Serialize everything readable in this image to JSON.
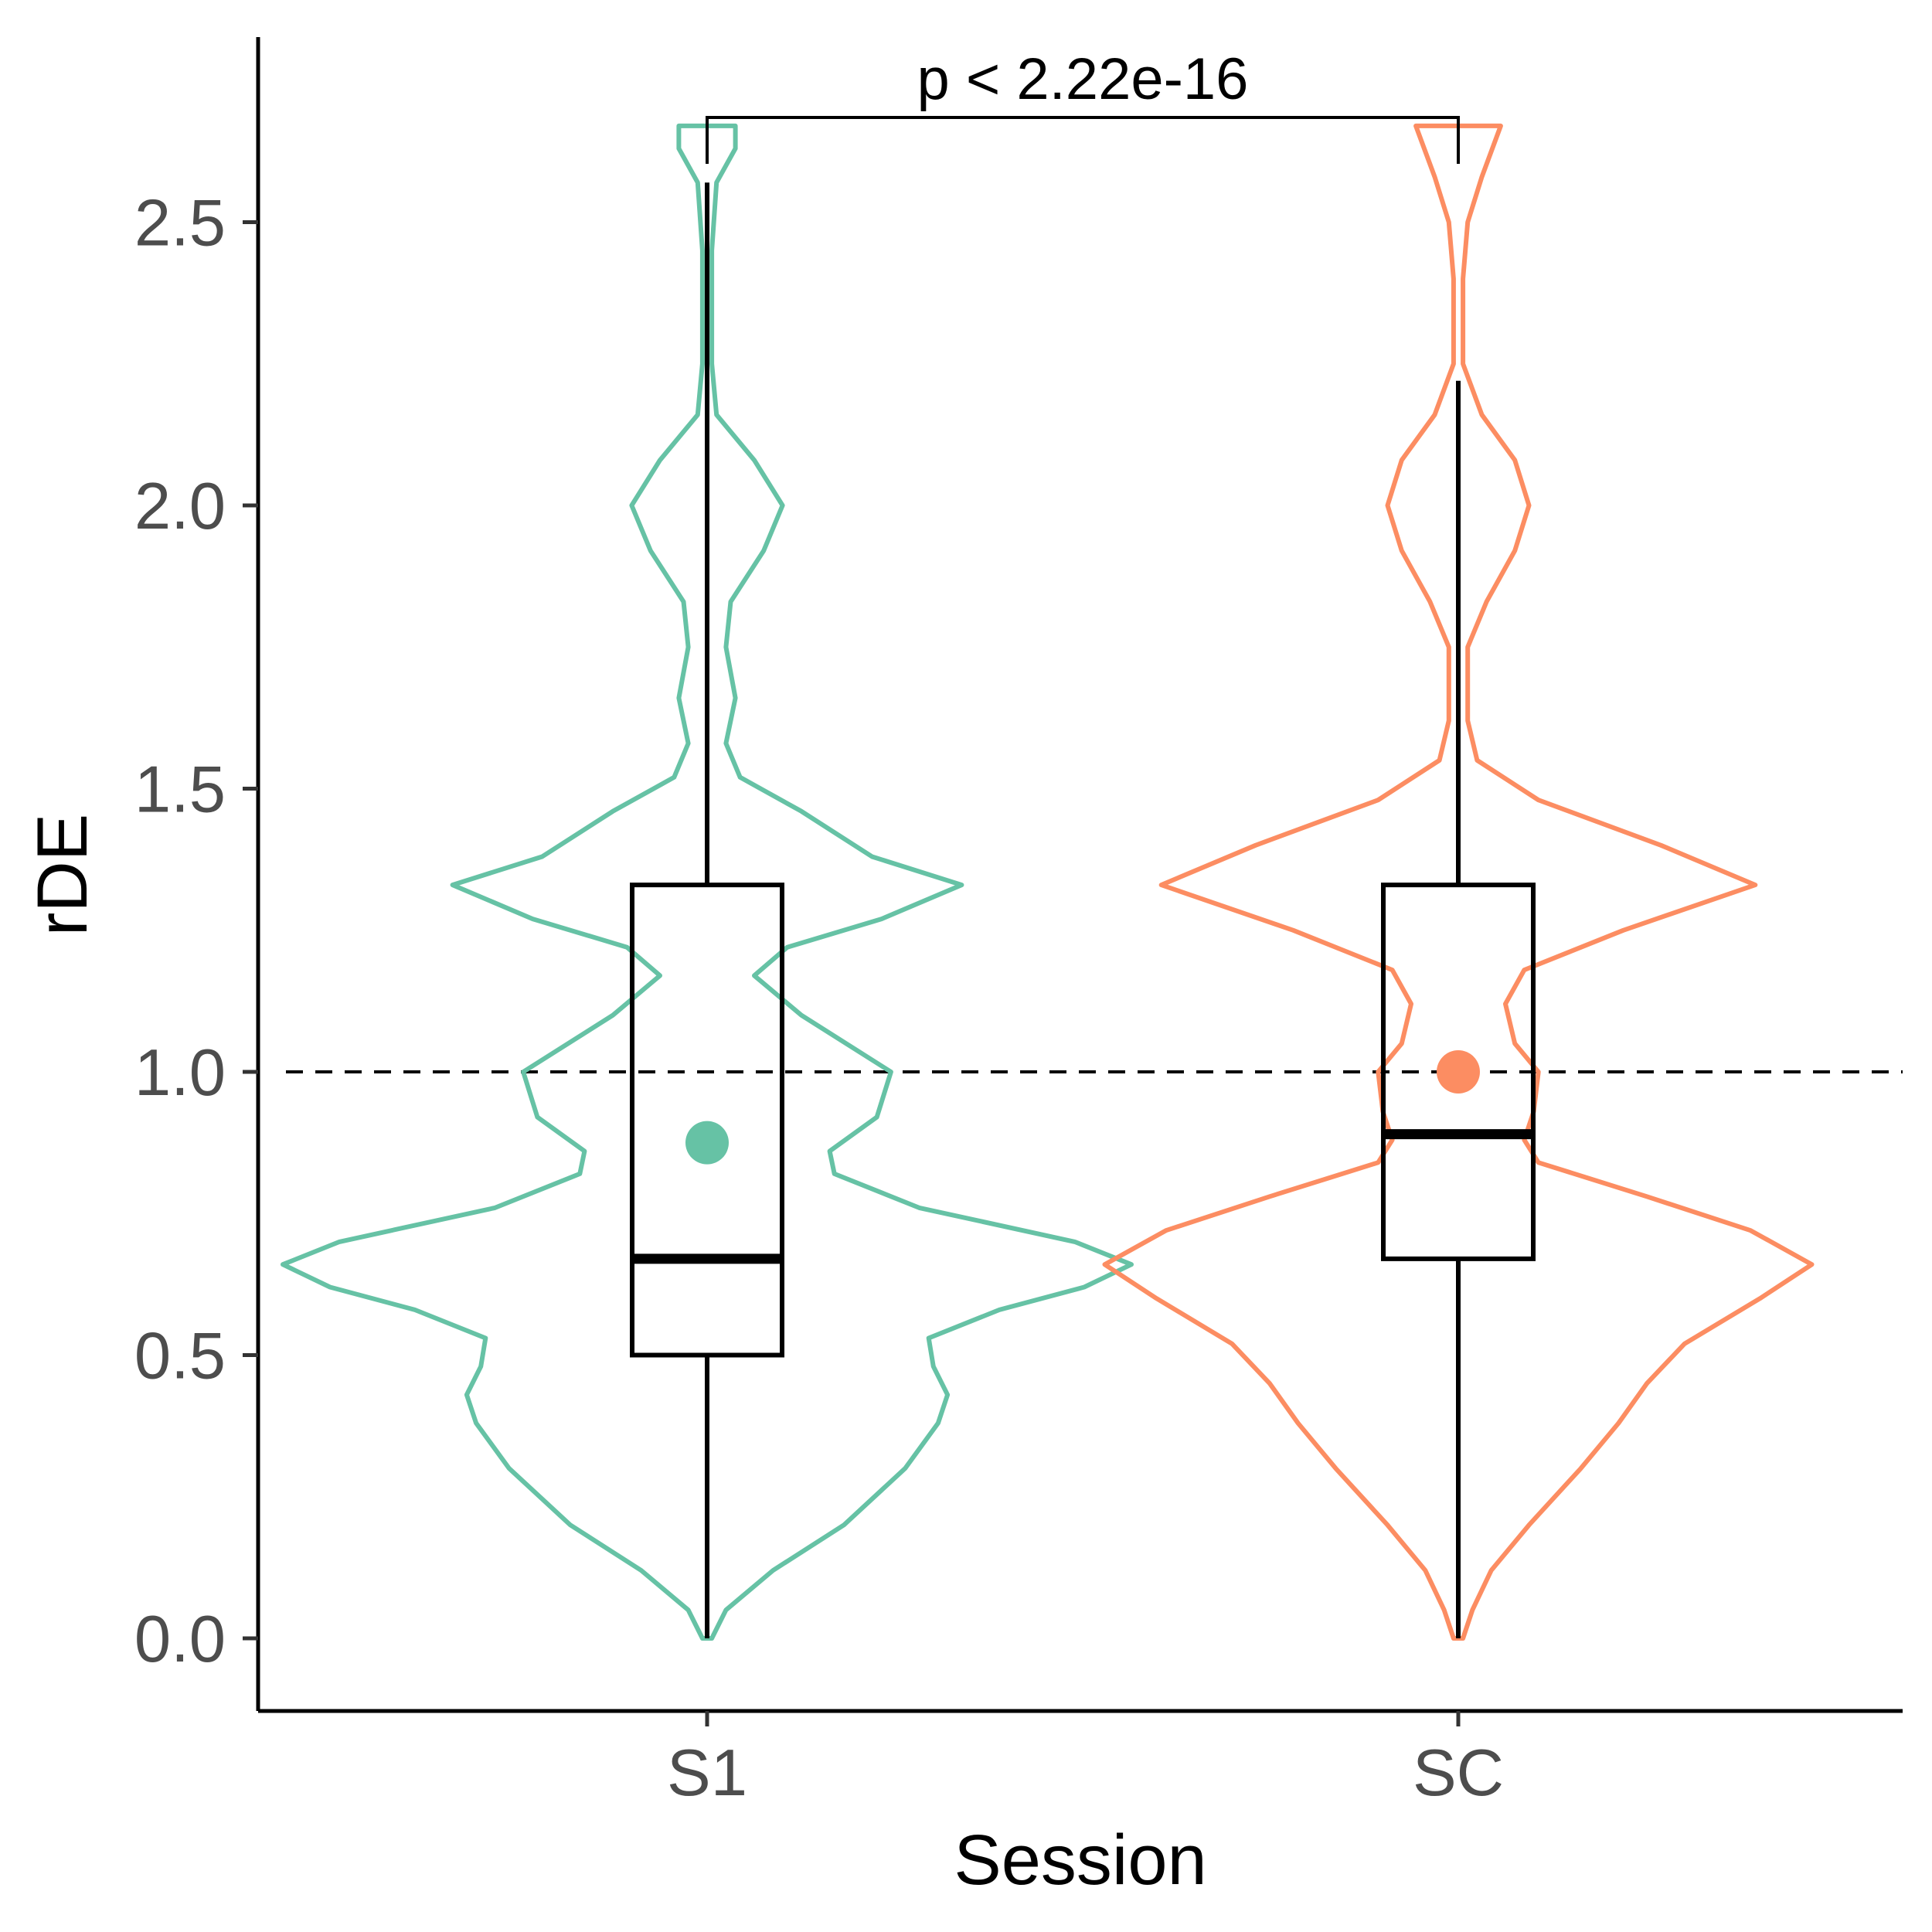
{
  "chart_data": {
    "type": "violin",
    "xlabel": "Session",
    "ylabel": "rDE",
    "categories": [
      "S1",
      "SC"
    ],
    "ylim": [
      -0.12,
      2.8
    ],
    "yticks": [
      "0.0",
      "0.5",
      "1.0",
      "1.5",
      "2.0",
      "2.5"
    ],
    "ytick_values": [
      0.0,
      0.5,
      1.0,
      1.5,
      2.0,
      2.5
    ],
    "reference_line": 1.0,
    "grid": false,
    "legend": "none",
    "annotation": {
      "text": "p < 2.22e-16",
      "from": "S1",
      "to": "SC"
    },
    "groups": [
      {
        "name": "S1",
        "color": "#66C2A5",
        "box": {
          "whisker_low": 0.0,
          "q1": 0.5,
          "median": 0.67,
          "q3": 1.33,
          "whisker_high": 2.57
        },
        "mean": 0.875,
        "violin": [
          [
            0.0,
            0.01
          ],
          [
            0.05,
            0.04
          ],
          [
            0.12,
            0.14
          ],
          [
            0.2,
            0.29
          ],
          [
            0.3,
            0.42
          ],
          [
            0.38,
            0.49
          ],
          [
            0.43,
            0.51
          ],
          [
            0.48,
            0.48
          ],
          [
            0.53,
            0.47
          ],
          [
            0.58,
            0.62
          ],
          [
            0.62,
            0.8
          ],
          [
            0.66,
            0.9
          ],
          [
            0.7,
            0.78
          ],
          [
            0.76,
            0.45
          ],
          [
            0.82,
            0.27
          ],
          [
            0.86,
            0.26
          ],
          [
            0.92,
            0.36
          ],
          [
            1.0,
            0.39
          ],
          [
            1.1,
            0.2
          ],
          [
            1.17,
            0.1
          ],
          [
            1.22,
            0.17
          ],
          [
            1.27,
            0.37
          ],
          [
            1.33,
            0.54
          ],
          [
            1.38,
            0.35
          ],
          [
            1.46,
            0.2
          ],
          [
            1.52,
            0.07
          ],
          [
            1.58,
            0.04
          ],
          [
            1.66,
            0.06
          ],
          [
            1.75,
            0.04
          ],
          [
            1.83,
            0.05
          ],
          [
            1.92,
            0.12
          ],
          [
            2.0,
            0.16
          ],
          [
            2.08,
            0.1
          ],
          [
            2.16,
            0.02
          ],
          [
            2.25,
            0.01
          ],
          [
            2.45,
            0.01
          ],
          [
            2.57,
            0.02
          ],
          [
            2.63,
            0.06
          ],
          [
            2.67,
            0.06
          ]
        ]
      },
      {
        "name": "SC",
        "color": "#FC8D62",
        "box": {
          "whisker_low": 0.0,
          "q1": 0.67,
          "median": 0.89,
          "q3": 1.33,
          "whisker_high": 2.22
        },
        "mean": 1.0,
        "violin": [
          [
            0.0,
            0.01
          ],
          [
            0.05,
            0.03
          ],
          [
            0.12,
            0.07
          ],
          [
            0.2,
            0.15
          ],
          [
            0.3,
            0.26
          ],
          [
            0.38,
            0.34
          ],
          [
            0.45,
            0.4
          ],
          [
            0.52,
            0.48
          ],
          [
            0.6,
            0.64
          ],
          [
            0.66,
            0.75
          ],
          [
            0.72,
            0.62
          ],
          [
            0.78,
            0.4
          ],
          [
            0.84,
            0.17
          ],
          [
            0.88,
            0.14
          ],
          [
            0.93,
            0.16
          ],
          [
            1.0,
            0.17
          ],
          [
            1.05,
            0.12
          ],
          [
            1.12,
            0.1
          ],
          [
            1.18,
            0.14
          ],
          [
            1.25,
            0.35
          ],
          [
            1.33,
            0.63
          ],
          [
            1.4,
            0.43
          ],
          [
            1.48,
            0.17
          ],
          [
            1.55,
            0.04
          ],
          [
            1.62,
            0.02
          ],
          [
            1.75,
            0.02
          ],
          [
            1.83,
            0.06
          ],
          [
            1.92,
            0.12
          ],
          [
            2.0,
            0.15
          ],
          [
            2.08,
            0.12
          ],
          [
            2.16,
            0.05
          ],
          [
            2.25,
            0.01
          ],
          [
            2.4,
            0.01
          ],
          [
            2.5,
            0.02
          ],
          [
            2.58,
            0.05
          ],
          [
            2.67,
            0.09
          ]
        ]
      }
    ]
  }
}
